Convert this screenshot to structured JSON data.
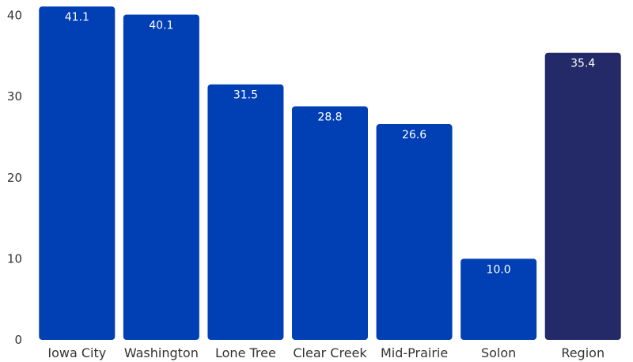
{
  "chart_data": {
    "type": "bar",
    "categories": [
      "Iowa City",
      "Washington",
      "Lone Tree",
      "Clear Creek",
      "Mid-Prairie",
      "Solon",
      "Region"
    ],
    "values": [
      41.1,
      40.1,
      31.5,
      28.8,
      26.6,
      10.0,
      35.4
    ],
    "value_labels": [
      "41.1",
      "40.1",
      "31.5",
      "28.8",
      "26.6",
      "10.0",
      "35.4"
    ],
    "yticks": [
      0,
      10,
      20,
      30,
      40
    ],
    "ylim": [
      0,
      40
    ],
    "title": "",
    "xlabel": "",
    "ylabel": "",
    "grid": false,
    "colors": {
      "bar": "#0040b4",
      "highlight": "#232a67",
      "text": "#333333",
      "label": "#ffffff"
    },
    "highlight_category": "Region"
  }
}
